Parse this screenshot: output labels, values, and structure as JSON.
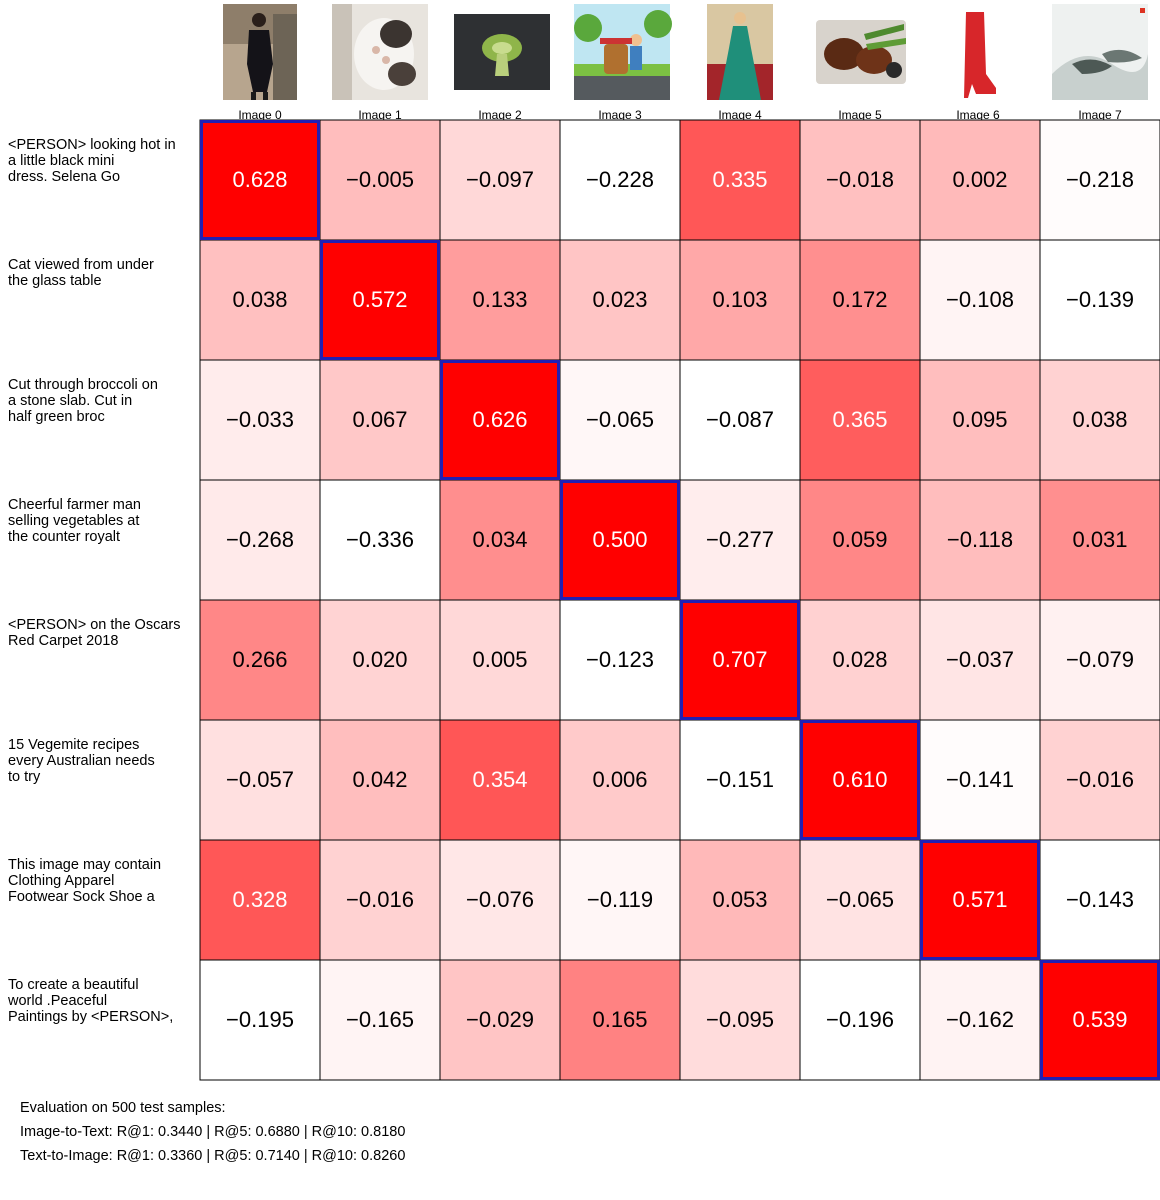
{
  "chart_data": {
    "type": "heatmap",
    "title": "",
    "columns": [
      "Image 0",
      "Image 1",
      "Image 2",
      "Image 3",
      "Image 4",
      "Image 5",
      "Image 6",
      "Image 7"
    ],
    "rows": [
      "<PERSON> looking hot in a little black mini dress. Selena Go",
      "Cat viewed from under the glass table",
      "Cut through broccoli on a stone slab. Cut in half green broc",
      "Cheerful farmer man selling vegetables at the counter royalt",
      "<PERSON> on the Oscars Red Carpet 2018",
      "15 Vegemite recipes every Australian needs to try",
      "This image may contain Clothing Apparel Footwear Sock Shoe a",
      "To create a beautiful world .Peaceful Paintings by <PERSON>,"
    ],
    "values": [
      [
        0.628,
        -0.005,
        -0.097,
        -0.228,
        0.335,
        -0.018,
        0.002,
        -0.218
      ],
      [
        0.038,
        0.572,
        0.133,
        0.023,
        0.103,
        0.172,
        -0.108,
        -0.139
      ],
      [
        -0.033,
        0.067,
        0.626,
        -0.065,
        -0.087,
        0.365,
        0.095,
        0.038
      ],
      [
        -0.268,
        -0.336,
        0.034,
        0.5,
        -0.277,
        0.059,
        -0.118,
        0.031
      ],
      [
        0.266,
        0.02,
        0.005,
        -0.123,
        0.707,
        0.028,
        -0.037,
        -0.079
      ],
      [
        -0.057,
        0.042,
        0.354,
        0.006,
        -0.151,
        0.61,
        -0.141,
        -0.016
      ],
      [
        0.328,
        -0.016,
        -0.076,
        -0.119,
        0.053,
        -0.065,
        0.571,
        -0.143
      ],
      [
        -0.195,
        -0.165,
        -0.029,
        0.165,
        -0.095,
        -0.196,
        -0.162,
        0.539
      ]
    ],
    "highlight": "diagonal",
    "colormap": "white-to-red",
    "high_color": "#ff0000",
    "low_color": "#ffffff",
    "highlight_color": "#1f1fb4"
  },
  "thumbnails": [
    {
      "label": "Image 0",
      "icon": "woman-black-dress-photo-icon"
    },
    {
      "label": "Image 1",
      "icon": "cat-under-glass-photo-icon"
    },
    {
      "label": "Image 2",
      "icon": "broccoli-slice-photo-icon"
    },
    {
      "label": "Image 3",
      "icon": "farmer-cartoon-image-icon"
    },
    {
      "label": "Image 4",
      "icon": "woman-green-gown-photo-icon"
    },
    {
      "label": "Image 5",
      "icon": "food-tray-photo-icon"
    },
    {
      "label": "Image 6",
      "icon": "red-boot-photo-icon"
    },
    {
      "label": "Image 7",
      "icon": "ink-painting-image-icon"
    }
  ],
  "row_labels": [
    [
      "<PERSON> looking hot in",
      "a little black mini",
      "dress. Selena Go"
    ],
    [
      "Cat viewed from under",
      "the glass table"
    ],
    [
      "Cut through broccoli on",
      "a stone slab. Cut in",
      "half green broc"
    ],
    [
      "Cheerful farmer man",
      "selling vegetables at",
      "the counter royalt"
    ],
    [
      "<PERSON> on the Oscars",
      "Red Carpet 2018"
    ],
    [
      "15 Vegemite recipes",
      "every Australian needs",
      "to try"
    ],
    [
      "This image may contain",
      "Clothing Apparel",
      "Footwear Sock Shoe a"
    ],
    [
      "To create a beautiful",
      "world .Peaceful",
      "Paintings by <PERSON>,"
    ]
  ],
  "footer": {
    "line1": "Evaluation on 500 test samples:",
    "line2": "Image-to-Text: R@1: 0.3440 | R@5: 0.6880 | R@10: 0.8180",
    "line3": "Text-to-Image: R@1: 0.3360 | R@5: 0.7140 | R@10: 0.8260"
  }
}
